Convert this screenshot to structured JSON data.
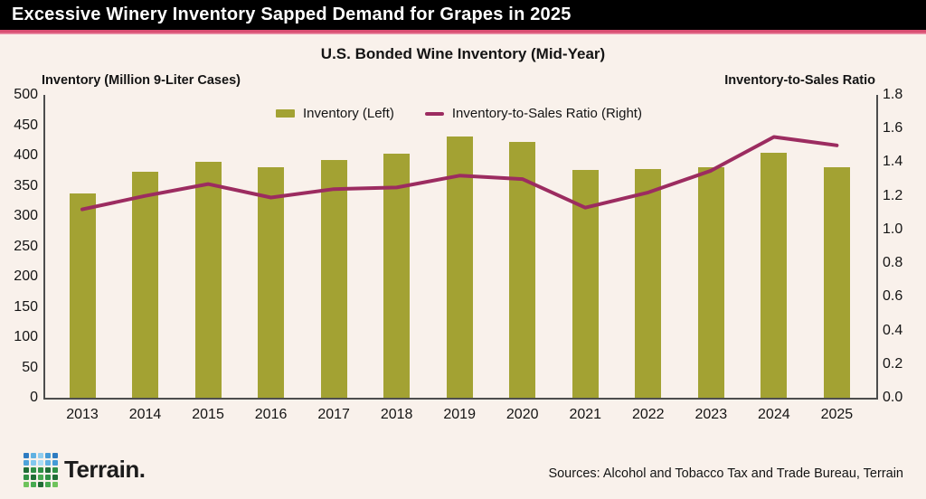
{
  "header": {
    "title": "Excessive Winery Inventory Sapped Demand for Grapes in 2025"
  },
  "chart": {
    "title": "U.S. Bonded Wine Inventory (Mid-Year)",
    "left_axis_label": "Inventory (Million 9-Liter Cases)",
    "right_axis_label": "Inventory-to-Sales Ratio",
    "legend": [
      {
        "label": "Inventory (Left)",
        "swatch": "square",
        "color": "#a3a233"
      },
      {
        "label": "Inventory-to-Sales Ratio (Right)",
        "swatch": "line",
        "color": "#9c2c60"
      }
    ]
  },
  "chart_data": {
    "type": "bar",
    "subtype": "bar+line combo, dual axis",
    "title": "U.S. Bonded Wine Inventory (Mid-Year)",
    "categories": [
      "2013",
      "2014",
      "2015",
      "2016",
      "2017",
      "2018",
      "2019",
      "2020",
      "2021",
      "2022",
      "2023",
      "2024",
      "2025"
    ],
    "series": [
      {
        "name": "Inventory (Left)",
        "type": "bar",
        "axis": "left",
        "color": "#a3a233",
        "values": [
          337,
          373,
          390,
          380,
          392,
          403,
          432,
          423,
          376,
          377,
          380,
          405,
          380
        ]
      },
      {
        "name": "Inventory-to-Sales Ratio (Right)",
        "type": "line",
        "axis": "right",
        "color": "#9c2c60",
        "values": [
          1.12,
          1.2,
          1.27,
          1.19,
          1.24,
          1.25,
          1.32,
          1.3,
          1.13,
          1.22,
          1.35,
          1.55,
          1.5
        ]
      }
    ],
    "left_axis": {
      "label": "Inventory (Million 9-Liter Cases)",
      "min": 0,
      "max": 500,
      "ticks": [
        "0",
        "50",
        "100",
        "150",
        "200",
        "250",
        "300",
        "350",
        "400",
        "450",
        "500"
      ]
    },
    "right_axis": {
      "label": "Inventory-to-Sales Ratio",
      "min": 0,
      "max": 1.8,
      "ticks": [
        "0.0",
        "0.2",
        "0.4",
        "0.6",
        "0.8",
        "1.0",
        "1.2",
        "1.4",
        "1.6",
        "1.8"
      ]
    },
    "grid": false,
    "legend_position": "top-center"
  },
  "footer": {
    "brand": "Terrain.",
    "sources": "Sources: Alcohol and Tobacco Tax and Trade Bureau, Terrain",
    "logo_colors": [
      "#2e7bc1",
      "#61b1e2",
      "#8fcdef",
      "#459bd6",
      "#2e7bc1",
      "#4fa3da",
      "#83c8ee",
      "#aadcf6",
      "#61b1e2",
      "#459bd6",
      "#206e36",
      "#2f9045",
      "#2f9045",
      "#206e36",
      "#2f9045",
      "#2f9045",
      "#206e36",
      "#47aa50",
      "#2f9045",
      "#206e36",
      "#6fc35c",
      "#47aa50",
      "#206e36",
      "#47aa50",
      "#6fc35c"
    ]
  },
  "colors": {
    "background": "#f9f1eb",
    "header_bg": "#000000",
    "header_text": "#ffffff",
    "accent_pink": "#d94f72",
    "accent_pink_light": "#f2a9bc",
    "axis_line": "#4d4d4d",
    "text": "#141414",
    "bar": "#a3a233",
    "line": "#9c2c60"
  }
}
